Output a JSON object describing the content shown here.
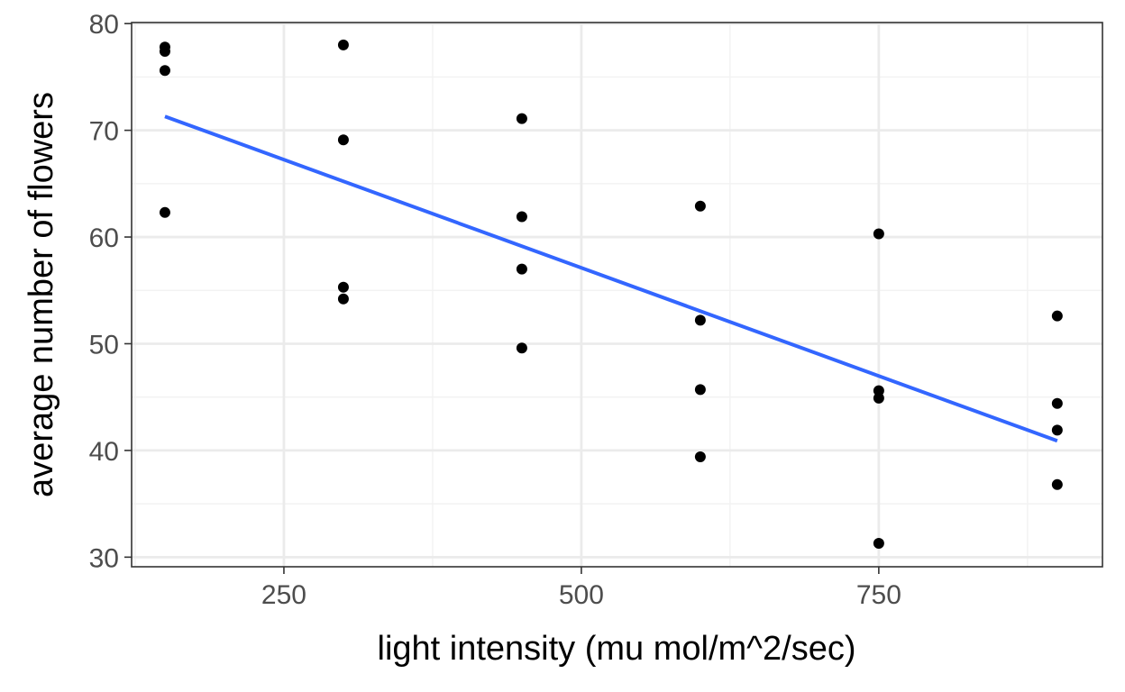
{
  "chart_data": {
    "type": "scatter",
    "title": "",
    "xlabel": "light intensity (mu mol/m^2/sec)",
    "ylabel": "average number of flowers",
    "xlim": [
      122,
      938
    ],
    "ylim": [
      29.1,
      80.1
    ],
    "x_ticks": [
      250,
      500,
      750
    ],
    "x_tick_labels": [
      "250",
      "500",
      "750"
    ],
    "x_minor_ticks": [
      125,
      375,
      625,
      875
    ],
    "y_ticks": [
      30,
      40,
      50,
      60,
      70,
      80
    ],
    "y_tick_labels": [
      "30",
      "40",
      "50",
      "60",
      "70",
      "80"
    ],
    "y_minor_ticks": [
      35,
      45,
      55,
      65,
      75
    ],
    "grid": true,
    "legend": "none",
    "points": [
      {
        "x": 150,
        "y": 77.8
      },
      {
        "x": 150,
        "y": 77.4
      },
      {
        "x": 150,
        "y": 75.6
      },
      {
        "x": 150,
        "y": 62.3
      },
      {
        "x": 300,
        "y": 78.0
      },
      {
        "x": 300,
        "y": 69.1
      },
      {
        "x": 300,
        "y": 55.3
      },
      {
        "x": 300,
        "y": 54.2
      },
      {
        "x": 450,
        "y": 71.1
      },
      {
        "x": 450,
        "y": 61.9
      },
      {
        "x": 450,
        "y": 57.0
      },
      {
        "x": 450,
        "y": 49.6
      },
      {
        "x": 600,
        "y": 62.9
      },
      {
        "x": 600,
        "y": 52.2
      },
      {
        "x": 600,
        "y": 45.7
      },
      {
        "x": 600,
        "y": 39.4
      },
      {
        "x": 750,
        "y": 60.3
      },
      {
        "x": 750,
        "y": 45.6
      },
      {
        "x": 750,
        "y": 44.9
      },
      {
        "x": 750,
        "y": 31.3
      },
      {
        "x": 900,
        "y": 52.6
      },
      {
        "x": 900,
        "y": 44.4
      },
      {
        "x": 900,
        "y": 41.9
      },
      {
        "x": 900,
        "y": 36.8
      }
    ],
    "fit_line": {
      "type": "linear",
      "x": [
        150,
        900
      ],
      "y": [
        71.3,
        40.9
      ]
    }
  },
  "colors": {
    "points": "#000000",
    "fit_line": "#3366FF",
    "panel_border": "#333333",
    "grid_major": "#EBEBEB",
    "grid_minor": "#F2F2F2",
    "tick_label": "#4D4D4D",
    "axis_title": "#000000"
  }
}
